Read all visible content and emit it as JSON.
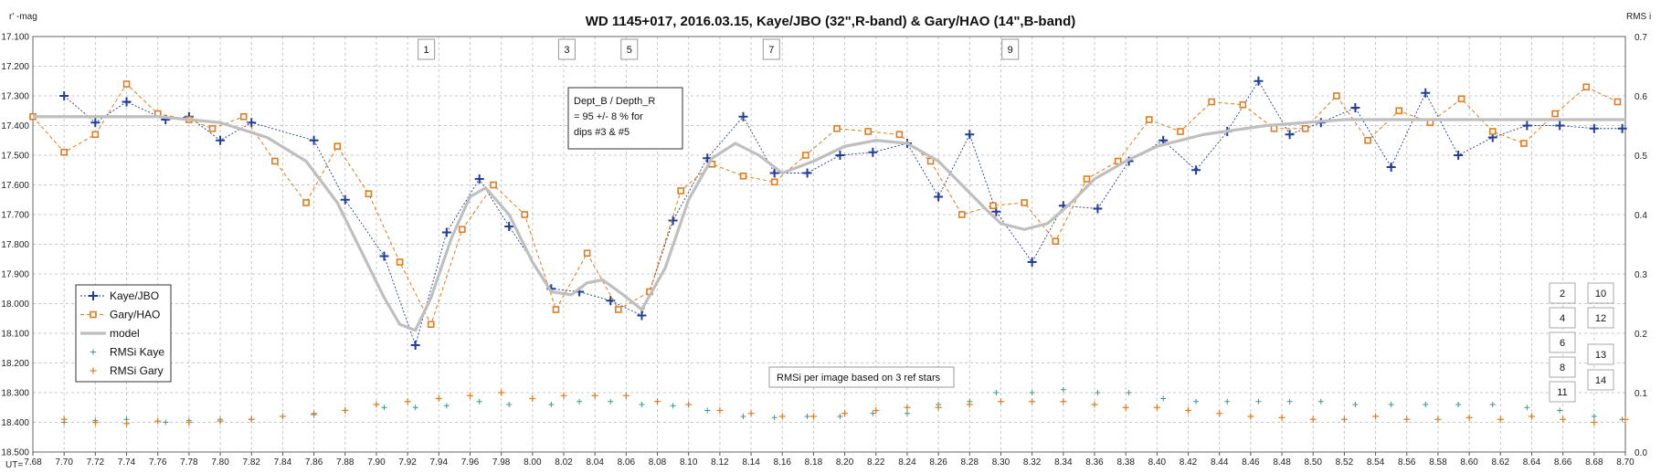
{
  "chart_data": {
    "type": "line",
    "title": "WD 1145+017,  2016.03.15,  Kaye/JBO  (32\",R-band)  & Gary/HAO  (14\",B-band)",
    "ylabel": "r' -mag",
    "y2label": "RMS i",
    "xprefix": "UT=",
    "xlim": [
      7.68,
      8.7
    ],
    "ylim": [
      17.1,
      18.5
    ],
    "y_inverted": true,
    "y2lim": [
      0.0,
      0.7
    ],
    "x_tick_step": 0.02,
    "y_tick_step": 0.1,
    "y2_tick_step": 0.1,
    "grid": true,
    "legend": "bottom-left",
    "colors": {
      "kaye": "#1f3d99",
      "gary": "#e07b20",
      "model": "#bfbfbf",
      "rms_kaye": "#3a9a8a",
      "rms_gary": "#e07b20",
      "grid": "#c8c8c8"
    },
    "legend_entries": [
      "Kaye/JBO",
      "Gary/HAO",
      "model",
      "RMSi Kaye",
      "RMSi Gary"
    ],
    "series": [
      {
        "name": "Kaye/JBO",
        "marker": "plus",
        "x": [
          7.7,
          7.72,
          7.74,
          7.765,
          7.78,
          7.8,
          7.82,
          7.86,
          7.88,
          7.905,
          7.925,
          7.945,
          7.966,
          7.985,
          8.012,
          8.03,
          8.05,
          8.07,
          8.09,
          8.112,
          8.135,
          8.155,
          8.176,
          8.197,
          8.218,
          8.24,
          8.26,
          8.28,
          8.297,
          8.32,
          8.34,
          8.362,
          8.382,
          8.404,
          8.425,
          8.445,
          8.465,
          8.485,
          8.505,
          8.527,
          8.55,
          8.572,
          8.593,
          8.615,
          8.637,
          8.658,
          8.68,
          8.698
        ],
        "y": [
          17.3,
          17.39,
          17.32,
          17.38,
          17.37,
          17.45,
          17.39,
          17.45,
          17.65,
          17.84,
          18.14,
          17.76,
          17.58,
          17.74,
          17.95,
          17.96,
          17.99,
          18.04,
          17.72,
          17.51,
          17.37,
          17.56,
          17.56,
          17.5,
          17.49,
          17.46,
          17.64,
          17.43,
          17.69,
          17.86,
          17.67,
          17.68,
          17.52,
          17.45,
          17.55,
          17.42,
          17.25,
          17.43,
          17.39,
          17.34,
          17.54,
          17.29,
          17.5,
          17.44,
          17.4,
          17.4,
          17.41,
          17.41
        ]
      },
      {
        "name": "Gary/HAO",
        "marker": "square",
        "x": [
          7.68,
          7.7,
          7.72,
          7.74,
          7.76,
          7.78,
          7.795,
          7.815,
          7.835,
          7.855,
          7.875,
          7.895,
          7.915,
          7.935,
          7.955,
          7.975,
          7.995,
          8.015,
          8.035,
          8.055,
          8.075,
          8.095,
          8.115,
          8.135,
          8.155,
          8.175,
          8.195,
          8.215,
          8.235,
          8.255,
          8.275,
          8.295,
          8.315,
          8.335,
          8.355,
          8.375,
          8.395,
          8.415,
          8.435,
          8.455,
          8.475,
          8.495,
          8.515,
          8.535,
          8.555,
          8.575,
          8.595,
          8.615,
          8.635,
          8.655,
          8.675,
          8.695
        ],
        "y": [
          17.37,
          17.49,
          17.43,
          17.26,
          17.36,
          17.38,
          17.41,
          17.37,
          17.52,
          17.66,
          17.47,
          17.63,
          17.86,
          18.07,
          17.75,
          17.6,
          17.7,
          18.02,
          17.83,
          18.02,
          17.96,
          17.62,
          17.53,
          17.57,
          17.59,
          17.5,
          17.41,
          17.42,
          17.43,
          17.52,
          17.7,
          17.67,
          17.66,
          17.79,
          17.58,
          17.52,
          17.38,
          17.42,
          17.32,
          17.33,
          17.41,
          17.41,
          17.3,
          17.45,
          17.35,
          17.39,
          17.31,
          17.42,
          17.46,
          17.36,
          17.27,
          17.32
        ]
      },
      {
        "name": "model",
        "marker": "none",
        "x": [
          7.68,
          7.72,
          7.76,
          7.8,
          7.83,
          7.855,
          7.875,
          7.89,
          7.905,
          7.915,
          7.925,
          7.935,
          7.948,
          7.96,
          7.97,
          7.985,
          8.0,
          8.012,
          8.025,
          8.035,
          8.045,
          8.058,
          8.07,
          8.085,
          8.1,
          8.115,
          8.13,
          8.145,
          8.16,
          8.18,
          8.2,
          8.22,
          8.24,
          8.26,
          8.275,
          8.29,
          8.3,
          8.315,
          8.33,
          8.345,
          8.36,
          8.38,
          8.4,
          8.43,
          8.47,
          8.52,
          8.58,
          8.65,
          8.7
        ],
        "y": [
          17.37,
          17.37,
          17.37,
          17.39,
          17.44,
          17.52,
          17.66,
          17.82,
          17.98,
          18.07,
          18.09,
          17.98,
          17.78,
          17.64,
          17.61,
          17.7,
          17.86,
          17.96,
          17.97,
          17.93,
          17.92,
          17.97,
          18.02,
          17.88,
          17.65,
          17.51,
          17.46,
          17.5,
          17.56,
          17.52,
          17.47,
          17.45,
          17.46,
          17.52,
          17.6,
          17.68,
          17.73,
          17.75,
          17.73,
          17.66,
          17.58,
          17.52,
          17.47,
          17.43,
          17.4,
          17.38,
          17.38,
          17.38,
          17.38
        ]
      },
      {
        "name": "RMSi Kaye",
        "axis": "right",
        "marker": "plus",
        "x": [
          7.7,
          7.72,
          7.74,
          7.765,
          7.78,
          7.8,
          7.82,
          7.86,
          7.88,
          7.905,
          7.925,
          7.945,
          7.966,
          7.985,
          8.012,
          8.03,
          8.05,
          8.07,
          8.09,
          8.112,
          8.135,
          8.155,
          8.176,
          8.197,
          8.218,
          8.24,
          8.26,
          8.28,
          8.297,
          8.32,
          8.34,
          8.362,
          8.382,
          8.404,
          8.425,
          8.445,
          8.465,
          8.485,
          8.505,
          8.527,
          8.55,
          8.572,
          8.593,
          8.615,
          8.637,
          8.658,
          8.68,
          8.698
        ],
        "y": [
          0.05,
          0.053,
          0.055,
          0.05,
          0.053,
          0.055,
          0.055,
          0.065,
          0.07,
          0.075,
          0.075,
          0.078,
          0.085,
          0.08,
          0.08,
          0.085,
          0.085,
          0.08,
          0.078,
          0.07,
          0.06,
          0.058,
          0.06,
          0.06,
          0.065,
          0.065,
          0.08,
          0.085,
          0.1,
          0.1,
          0.105,
          0.1,
          0.1,
          0.09,
          0.085,
          0.085,
          0.085,
          0.085,
          0.085,
          0.08,
          0.08,
          0.08,
          0.08,
          0.08,
          0.075,
          0.07,
          0.06,
          0.055
        ]
      },
      {
        "name": "RMSi Gary",
        "axis": "right",
        "marker": "plus",
        "x": [
          7.7,
          7.72,
          7.74,
          7.76,
          7.78,
          7.8,
          7.82,
          7.84,
          7.86,
          7.88,
          7.9,
          7.92,
          7.94,
          7.96,
          7.98,
          8.0,
          8.02,
          8.04,
          8.06,
          8.08,
          8.1,
          8.12,
          8.14,
          8.16,
          8.18,
          8.2,
          8.22,
          8.24,
          8.26,
          8.28,
          8.3,
          8.32,
          8.34,
          8.36,
          8.38,
          8.4,
          8.42,
          8.44,
          8.46,
          8.48,
          8.5,
          8.52,
          8.54,
          8.56,
          8.58,
          8.6,
          8.62,
          8.64,
          8.66,
          8.68,
          8.7
        ],
        "y": [
          0.055,
          0.05,
          0.048,
          0.052,
          0.05,
          0.052,
          0.055,
          0.06,
          0.063,
          0.07,
          0.08,
          0.085,
          0.09,
          0.095,
          0.1,
          0.09,
          0.095,
          0.095,
          0.095,
          0.085,
          0.08,
          0.07,
          0.065,
          0.06,
          0.06,
          0.065,
          0.07,
          0.075,
          0.075,
          0.08,
          0.085,
          0.085,
          0.085,
          0.08,
          0.075,
          0.075,
          0.07,
          0.065,
          0.06,
          0.058,
          0.055,
          0.055,
          0.06,
          0.055,
          0.055,
          0.058,
          0.055,
          0.06,
          0.055,
          0.05,
          0.055
        ]
      }
    ],
    "annotations": {
      "dip_labels": [
        {
          "text": "1",
          "x": 7.932
        },
        {
          "text": "3",
          "x": 8.022
        },
        {
          "text": "5",
          "x": 8.062
        },
        {
          "text": "7",
          "x": 8.153
        },
        {
          "text": "9",
          "x": 8.306
        }
      ],
      "depth_note": [
        "Dept_B / Depth_R",
        "= 95 +/-  8 % for",
        "dips #3  & #5"
      ],
      "rms_note": "RMSi per image based on 3 ref stars",
      "key_labels_left": [
        "2",
        "4",
        "6",
        "8",
        "11"
      ],
      "key_labels_right": [
        "10",
        "12",
        "13",
        "14"
      ]
    }
  }
}
